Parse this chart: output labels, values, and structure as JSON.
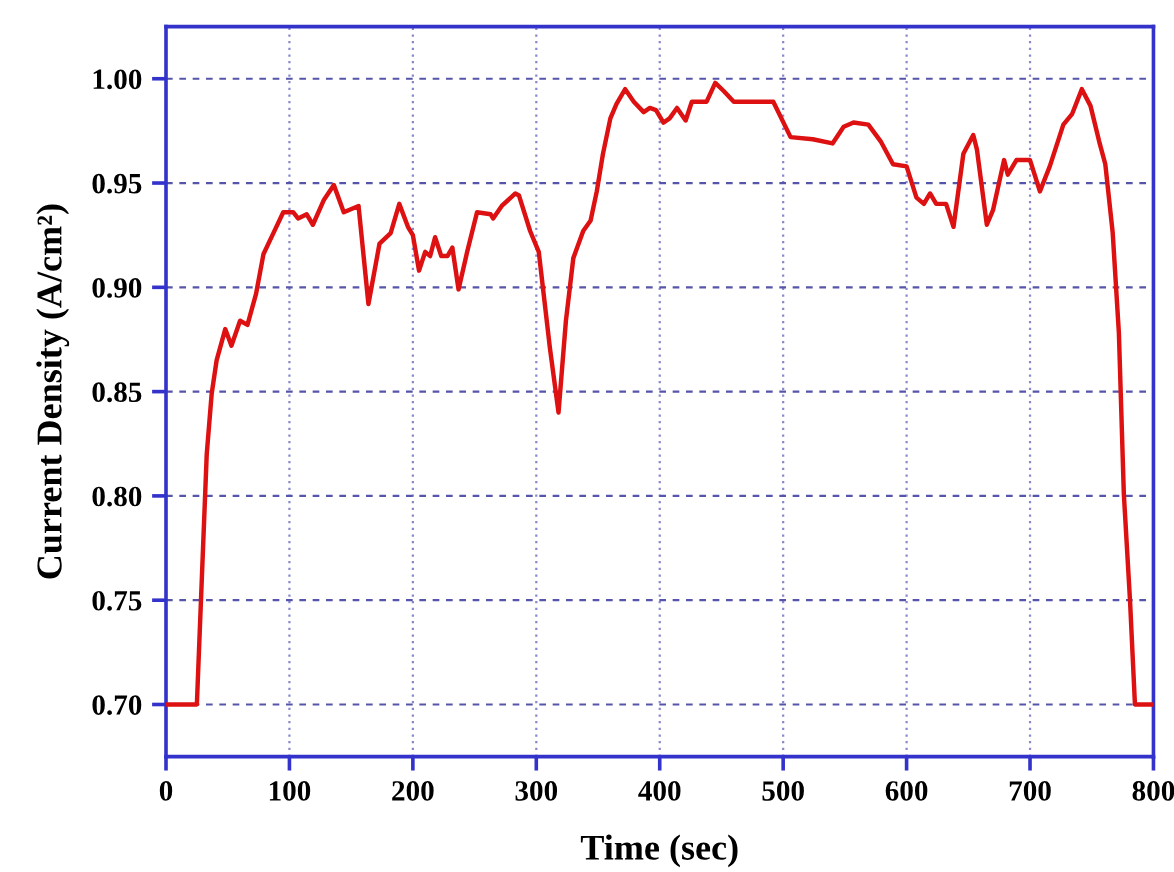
{
  "chart_data": {
    "type": "line",
    "xlabel": "Time (sec)",
    "ylabel": "Current Density (A/cm²)",
    "xlim": [
      0,
      800
    ],
    "ylim": [
      0.675,
      1.025
    ],
    "xticks": [
      0,
      100,
      200,
      300,
      400,
      500,
      600,
      700,
      800
    ],
    "yticks": [
      {
        "value": 0.7,
        "label": "0.70"
      },
      {
        "value": 0.75,
        "label": "0.75"
      },
      {
        "value": 0.8,
        "label": "0.80"
      },
      {
        "value": 0.85,
        "label": "0.85"
      },
      {
        "value": 0.9,
        "label": "0.90"
      },
      {
        "value": 0.95,
        "label": "0.95"
      },
      {
        "value": 1.0,
        "label": "1.00"
      }
    ],
    "grid": true,
    "marker": "none",
    "line_style": "solid",
    "series": [
      {
        "color": "#dd1111",
        "x": [
          0,
          25,
          33,
          37,
          41,
          48,
          53,
          60,
          66,
          73,
          79,
          87,
          95,
          103,
          107,
          114,
          119,
          128,
          136,
          144,
          156,
          164,
          173,
          182,
          189,
          196,
          200,
          205,
          210,
          214,
          218,
          223,
          228,
          232,
          237,
          244,
          252,
          263,
          265,
          272,
          283,
          286,
          295,
          302,
          311,
          318,
          324,
          330,
          338,
          344,
          349,
          354,
          360,
          365,
          372,
          379,
          387,
          392,
          397,
          403,
          408,
          414,
          421,
          426,
          438,
          445,
          452,
          460,
          492,
          506,
          524,
          540,
          549,
          557,
          569,
          579,
          589,
          600,
          608,
          614,
          619,
          624,
          632,
          638,
          646,
          654,
          657,
          665,
          670,
          679,
          682,
          689,
          700,
          708,
          716,
          727,
          734,
          742,
          749,
          756,
          761,
          767,
          772,
          776,
          781,
          785,
          800
        ],
        "values": [
          0.7,
          0.7,
          0.82,
          0.849,
          0.865,
          0.88,
          0.872,
          0.884,
          0.882,
          0.897,
          0.916,
          0.926,
          0.936,
          0.936,
          0.933,
          0.935,
          0.93,
          0.942,
          0.949,
          0.936,
          0.939,
          0.892,
          0.921,
          0.926,
          0.94,
          0.929,
          0.925,
          0.908,
          0.917,
          0.915,
          0.924,
          0.915,
          0.915,
          0.919,
          0.899,
          0.917,
          0.936,
          0.935,
          0.933,
          0.939,
          0.945,
          0.944,
          0.927,
          0.917,
          0.871,
          0.84,
          0.884,
          0.914,
          0.927,
          0.932,
          0.946,
          0.964,
          0.981,
          0.988,
          0.995,
          0.989,
          0.984,
          0.986,
          0.985,
          0.979,
          0.981,
          0.986,
          0.98,
          0.989,
          0.989,
          0.998,
          0.994,
          0.989,
          0.989,
          0.972,
          0.971,
          0.969,
          0.977,
          0.979,
          0.978,
          0.97,
          0.959,
          0.958,
          0.943,
          0.94,
          0.945,
          0.94,
          0.94,
          0.929,
          0.964,
          0.973,
          0.966,
          0.93,
          0.937,
          0.961,
          0.954,
          0.961,
          0.961,
          0.946,
          0.958,
          0.978,
          0.983,
          0.995,
          0.987,
          0.97,
          0.959,
          0.926,
          0.878,
          0.801,
          0.75,
          0.7,
          0.7
        ]
      }
    ]
  }
}
